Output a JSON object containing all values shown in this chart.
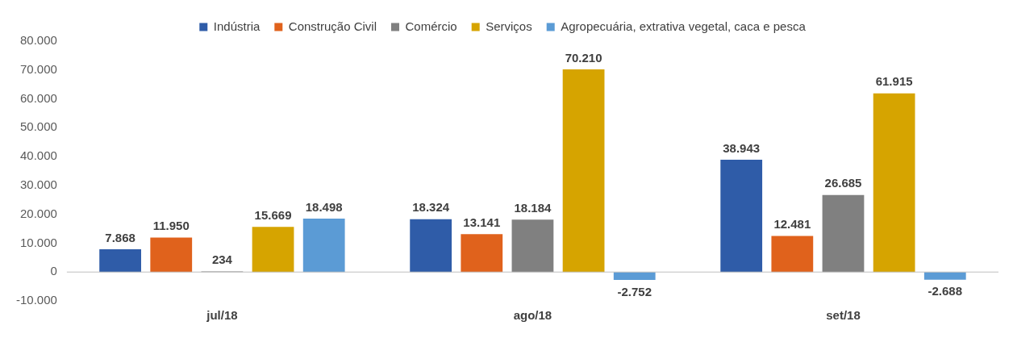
{
  "chart_data": {
    "type": "bar",
    "categories": [
      "jul/18",
      "ago/18",
      "set/18"
    ],
    "series": [
      {
        "name": "Indústria",
        "color": "#2f5ca8",
        "values": [
          7868,
          18324,
          38943
        ],
        "value_labels": [
          "7.868",
          "18.324",
          "38.943"
        ]
      },
      {
        "name": "Construção Civil",
        "color": "#e0621c",
        "values": [
          11950,
          13141,
          12481
        ],
        "value_labels": [
          "11.950",
          "13.141",
          "12.481"
        ]
      },
      {
        "name": "Comércio",
        "color": "#808080",
        "values": [
          234,
          18184,
          26685
        ],
        "value_labels": [
          "234",
          "18.184",
          "26.685"
        ]
      },
      {
        "name": "Serviços",
        "color": "#d6a400",
        "values": [
          15669,
          70210,
          61915
        ],
        "value_labels": [
          "15.669",
          "70.210",
          "61.915"
        ]
      },
      {
        "name": "Agropecuária, extrativa vegetal, caca e pesca",
        "color": "#5b9bd5",
        "values": [
          18498,
          -2752,
          -2688
        ],
        "value_labels": [
          "18.498",
          "-2.752",
          "-2.688"
        ]
      }
    ],
    "ylim": [
      -10000,
      80000
    ],
    "yticks": [
      {
        "value": -10000,
        "label": "-10.000"
      },
      {
        "value": 0,
        "label": "0"
      },
      {
        "value": 10000,
        "label": "10.000"
      },
      {
        "value": 20000,
        "label": "20.000"
      },
      {
        "value": 30000,
        "label": "30.000"
      },
      {
        "value": 40000,
        "label": "40.000"
      },
      {
        "value": 50000,
        "label": "50.000"
      },
      {
        "value": 60000,
        "label": "60.000"
      },
      {
        "value": 70000,
        "label": "70.000"
      },
      {
        "value": 80000,
        "label": "80.000"
      }
    ],
    "ref_lines": [
      {
        "axis": "y",
        "value": 0,
        "color": "#bfbfbf"
      }
    ],
    "grid": false,
    "legend": "top"
  }
}
